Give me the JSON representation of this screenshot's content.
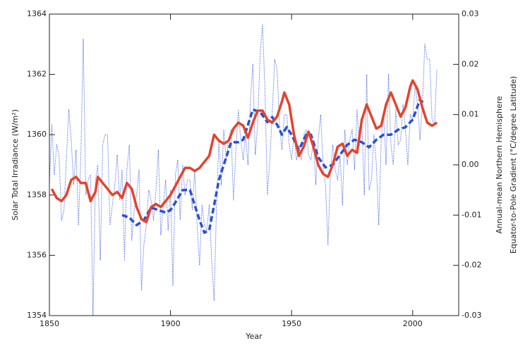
{
  "chart_data": {
    "type": "line",
    "xlabel": "Year",
    "ylabel": "Solar Total Irradiance (W/m²)",
    "y2label": [
      "Annual-mean Northern Hemisphere",
      "Equator-to-Pole Gradient (°C/degree Latitude)"
    ],
    "xlim": [
      1850,
      2019
    ],
    "xticks": [
      1850,
      1900,
      1950,
      2000
    ],
    "ylim": [
      1354,
      1364
    ],
    "yticks": [
      1354,
      1356,
      1358,
      1360,
      1362,
      1364
    ],
    "y2lim": [
      -0.03,
      0.03
    ],
    "y2ticks": [
      -0.03,
      -0.02,
      -0.01,
      {
        "value": 0,
        "label": "0.00"
      },
      0.01,
      0.02,
      0.03
    ],
    "series": [
      {
        "style": "dotted",
        "color": "#2a4fd8",
        "axis": "y2",
        "x": [
          1850,
          1851,
          1852,
          1853,
          1854,
          1855,
          1856,
          1857,
          1858,
          1859,
          1860,
          1861,
          1862,
          1863,
          1864,
          1865,
          1866,
          1867,
          1868,
          1869,
          1870,
          1871,
          1872,
          1873,
          1874,
          1875,
          1876,
          1877,
          1878,
          1879,
          1880,
          1881,
          1882,
          1883,
          1884,
          1885,
          1886,
          1887,
          1888,
          1889,
          1890,
          1891,
          1892,
          1893,
          1894,
          1895,
          1896,
          1897,
          1898,
          1899,
          1900,
          1901,
          1902,
          1903,
          1904,
          1905,
          1906,
          1907,
          1908,
          1909,
          1910,
          1911,
          1912,
          1913,
          1914,
          1915,
          1916,
          1917,
          1918,
          1919,
          1920,
          1921,
          1922,
          1923,
          1924,
          1925,
          1926,
          1927,
          1928,
          1929,
          1930,
          1931,
          1932,
          1933,
          1934,
          1935,
          1936,
          1937,
          1938,
          1939,
          1940,
          1941,
          1942,
          1943,
          1944,
          1945,
          1946,
          1947,
          1948,
          1949,
          1950,
          1951,
          1952,
          1953,
          1954,
          1955,
          1956,
          1957,
          1958,
          1959,
          1960,
          1961,
          1962,
          1963,
          1964,
          1965,
          1966,
          1967,
          1968,
          1969,
          1970,
          1971,
          1972,
          1973,
          1974,
          1975,
          1976,
          1977,
          1978,
          1979,
          1980,
          1981,
          1982,
          1983,
          1984,
          1985,
          1986,
          1987,
          1988,
          1989,
          1990,
          1991,
          1992,
          1993,
          1994,
          1995,
          1996,
          1997,
          1998,
          1999,
          2000,
          2001,
          2002,
          2003,
          2004,
          2005,
          2006,
          2007,
          2008,
          2009,
          2010
        ],
        "values": [
          -0.004,
          0.008,
          -0.002,
          0.004,
          0.002,
          -0.011,
          -0.009,
          0.001,
          0.011,
          0.005,
          -0.004,
          0.003,
          -0.012,
          0.002,
          0.025,
          -0.006,
          -0.003,
          -0.002,
          -0.03,
          -0.003,
          0.0,
          -0.019,
          0.004,
          0.006,
          0.006,
          -0.012,
          -0.008,
          -0.004,
          0.002,
          -0.007,
          -0.001,
          -0.019,
          -0.001,
          0.004,
          -0.015,
          -0.009,
          -0.006,
          -0.001,
          -0.025,
          -0.016,
          -0.012,
          -0.005,
          -0.007,
          -0.011,
          -0.005,
          0.003,
          -0.014,
          -0.008,
          -0.003,
          -0.013,
          -0.005,
          -0.024,
          -0.002,
          0.001,
          -0.011,
          0.0,
          -0.006,
          -0.003,
          -0.003,
          -0.009,
          -0.001,
          -0.012,
          -0.02,
          -0.008,
          -0.012,
          -0.013,
          -0.008,
          -0.019,
          -0.027,
          -0.008,
          0.005,
          -0.004,
          0.007,
          0.001,
          0.005,
          0.007,
          -0.007,
          0.003,
          0.011,
          0.005,
          0.001,
          0.006,
          0.0,
          0.013,
          0.02,
          0.002,
          0.008,
          0.022,
          0.028,
          0.015,
          -0.006,
          0.001,
          0.01,
          0.021,
          0.019,
          0.008,
          0.003,
          0.01,
          0.01,
          0.004,
          0.001,
          0.006,
          0.001,
          0.003,
          0.001,
          0.006,
          0.007,
          0.002,
          0.001,
          0.005,
          -0.004,
          0.005,
          0.01,
          0.0,
          -0.004,
          -0.016,
          -0.002,
          0.004,
          -0.001,
          -0.003,
          0.002,
          -0.008,
          0.007,
          0.0,
          0.005,
          0.007,
          -0.001,
          0.011,
          0.004,
          0.009,
          -0.006,
          0.018,
          -0.005,
          -0.003,
          0.006,
          0.0,
          -0.012,
          0.005,
          0.01,
          0.0,
          0.018,
          0.004,
          0.0,
          0.011,
          0.004,
          0.005,
          0.012,
          0.007,
          0.0,
          0.01,
          0.009,
          0.016,
          0.012,
          0.005,
          0.012,
          0.024,
          0.021,
          0.021,
          0.009,
          0.008,
          0.019
        ]
      },
      {
        "style": "dashed",
        "color": "#2a4fd8",
        "axis": "y2",
        "x": [
          1880,
          1883,
          1886,
          1889,
          1892,
          1895,
          1898,
          1900,
          1902,
          1905,
          1908,
          1910,
          1912,
          1914,
          1916,
          1918,
          1920,
          1922,
          1925,
          1928,
          1930,
          1932,
          1934,
          1937,
          1940,
          1942,
          1944,
          1946,
          1948,
          1950,
          1953,
          1956,
          1958,
          1961,
          1964,
          1967,
          1970,
          1973,
          1976,
          1979,
          1982,
          1985,
          1988,
          1991,
          1994,
          1997,
          2000,
          2003,
          2005
        ],
        "values": [
          -0.01,
          -0.0105,
          -0.012,
          -0.011,
          -0.0085,
          -0.009,
          -0.0095,
          -0.009,
          -0.0075,
          -0.005,
          -0.005,
          -0.008,
          -0.011,
          -0.0135,
          -0.013,
          -0.008,
          -0.003,
          0.0,
          0.0045,
          0.0045,
          0.005,
          0.008,
          0.011,
          0.0105,
          0.0085,
          0.0095,
          0.008,
          0.006,
          0.0075,
          0.006,
          0.003,
          0.006,
          0.006,
          0.0015,
          -0.0005,
          0.0,
          0.002,
          0.004,
          0.005,
          0.0045,
          0.0035,
          0.005,
          0.006,
          0.006,
          0.007,
          0.0075,
          0.009,
          0.013,
          0.012
        ]
      },
      {
        "style": "solid",
        "color": "#e5432b",
        "x": [
          1851,
          1853,
          1855,
          1857,
          1859,
          1861,
          1863,
          1865,
          1867,
          1869,
          1870,
          1872,
          1874,
          1876,
          1878,
          1880,
          1882,
          1884,
          1886,
          1888,
          1890,
          1892,
          1894,
          1896,
          1898,
          1900,
          1902,
          1904,
          1906,
          1908,
          1910,
          1912,
          1914,
          1916,
          1918,
          1920,
          1922,
          1924,
          1926,
          1928,
          1930,
          1932,
          1934,
          1936,
          1938,
          1940,
          1942,
          1944,
          1946,
          1947,
          1949,
          1951,
          1953,
          1955,
          1957,
          1959,
          1961,
          1963,
          1965,
          1967,
          1969,
          1971,
          1973,
          1975,
          1977,
          1979,
          1981,
          1983,
          1985,
          1987,
          1989,
          1991,
          1993,
          1995,
          1997,
          1999,
          2000,
          2002,
          2004,
          2006,
          2008,
          2010
        ],
        "values": [
          1358.2,
          1357.9,
          1357.8,
          1358.0,
          1358.5,
          1358.6,
          1358.4,
          1358.4,
          1357.8,
          1358.1,
          1358.6,
          1358.4,
          1358.2,
          1358.0,
          1358.1,
          1357.9,
          1358.4,
          1358.2,
          1357.6,
          1357.2,
          1357.1,
          1357.6,
          1357.7,
          1357.6,
          1357.8,
          1358.0,
          1358.3,
          1358.6,
          1358.9,
          1358.9,
          1358.8,
          1358.9,
          1359.1,
          1359.3,
          1360.0,
          1359.8,
          1359.7,
          1359.8,
          1360.2,
          1360.4,
          1360.3,
          1359.9,
          1360.4,
          1360.8,
          1360.8,
          1360.5,
          1360.4,
          1360.6,
          1361.1,
          1361.4,
          1361.0,
          1360.0,
          1359.3,
          1359.6,
          1360.1,
          1359.6,
          1359.0,
          1358.7,
          1358.6,
          1359.0,
          1359.6,
          1359.7,
          1359.3,
          1359.5,
          1359.4,
          1360.5,
          1361.0,
          1360.6,
          1360.2,
          1360.3,
          1361.0,
          1361.4,
          1361.0,
          1360.6,
          1360.9,
          1361.6,
          1361.8,
          1361.5,
          1360.9,
          1360.4,
          1360.3,
          1360.4
        ]
      }
    ]
  }
}
